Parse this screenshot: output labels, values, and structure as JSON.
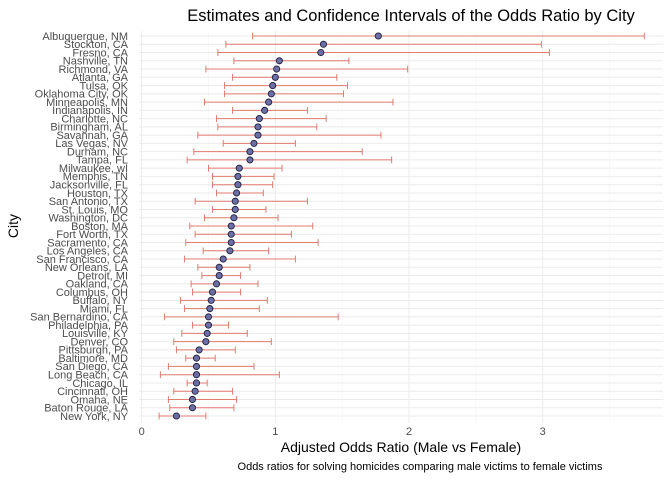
{
  "chart_data": {
    "type": "scatter",
    "subtype": "point-range",
    "title": "Estimates and Confidence Intervals of the Odds Ratio by City",
    "xlabel": "Adjusted Odds Ratio (Male vs Female)",
    "ylabel": "City",
    "caption": "Odds ratios for solving homicides comparing male victims to female victims",
    "xlim": [
      -0.02,
      3.9
    ],
    "xticks": [
      0,
      1,
      2,
      3
    ],
    "grid": true,
    "legend": "none",
    "colors": {
      "point": "#6b6fa5",
      "point_edge": "#1f1f3d",
      "errorbar": "#e07b6e",
      "grid_major": "#ebebeb",
      "grid_minor": "#f5f5f5"
    },
    "categories": [
      "Albuquerque, NM",
      "Stockton, CA",
      "Fresno, CA",
      "Nashville, TN",
      "Richmond, VA",
      "Atlanta, GA",
      "Tulsa, OK",
      "Oklahoma City, OK",
      "Minneapolis, MN",
      "Indianapolis, IN",
      "Charlotte, NC",
      "Birmingham, AL",
      "Savannah, GA",
      "Las Vegas, NV",
      "Durham, NC",
      "Tampa, FL",
      "Milwaukee, wI",
      "Memphis, TN",
      "Jacksonville, FL",
      "Houston, TX",
      "San Antonio, TX",
      "St. Louis, MO",
      "Washington, DC",
      "Boston, MA",
      "Fort Worth, TX",
      "Sacramento, CA",
      "Los Angeles, CA",
      "San Francisco, CA",
      "New Orleans, LA",
      "Detroit, MI",
      "Oakland, CA",
      "Columbus, OH",
      "Buffalo, NY",
      "Miami, FL",
      "San Bernardino, CA",
      "Philadelphia, PA",
      "Louisville, KY",
      "Denver, CO",
      "Pittsburgh, PA",
      "Baltimore, MD",
      "San Diego, CA",
      "Long Beach, CA",
      "Chicago, IL",
      "Cincinnati, OH",
      "Omaha, NE",
      "Baton Rouge, LA",
      "New York, NY"
    ],
    "estimates": [
      1.77,
      1.36,
      1.34,
      1.03,
      1.01,
      1.0,
      0.98,
      0.97,
      0.95,
      0.92,
      0.88,
      0.87,
      0.87,
      0.84,
      0.81,
      0.81,
      0.73,
      0.72,
      0.72,
      0.71,
      0.7,
      0.7,
      0.69,
      0.67,
      0.67,
      0.67,
      0.66,
      0.61,
      0.58,
      0.58,
      0.56,
      0.53,
      0.52,
      0.51,
      0.5,
      0.5,
      0.49,
      0.48,
      0.43,
      0.41,
      0.41,
      0.41,
      0.41,
      0.4,
      0.38,
      0.38,
      0.26
    ],
    "lower": [
      0.83,
      0.63,
      0.57,
      0.69,
      0.48,
      0.68,
      0.62,
      0.62,
      0.47,
      0.68,
      0.56,
      0.57,
      0.42,
      0.61,
      0.39,
      0.34,
      0.5,
      0.53,
      0.53,
      0.56,
      0.4,
      0.53,
      0.47,
      0.36,
      0.4,
      0.33,
      0.46,
      0.32,
      0.42,
      0.45,
      0.37,
      0.38,
      0.29,
      0.32,
      0.17,
      0.38,
      0.3,
      0.24,
      0.26,
      0.33,
      0.2,
      0.14,
      0.34,
      0.24,
      0.2,
      0.21,
      0.13
    ],
    "upper": [
      3.76,
      2.99,
      3.05,
      1.55,
      1.99,
      1.46,
      1.54,
      1.51,
      1.88,
      1.24,
      1.38,
      1.31,
      1.79,
      1.15,
      1.65,
      1.87,
      1.05,
      0.99,
      0.98,
      0.91,
      1.24,
      0.93,
      1.02,
      1.28,
      1.12,
      1.32,
      0.95,
      1.15,
      0.81,
      0.74,
      0.87,
      0.74,
      0.94,
      0.88,
      1.47,
      0.65,
      0.79,
      0.97,
      0.7,
      0.55,
      0.84,
      1.03,
      0.49,
      0.68,
      0.71,
      0.69,
      0.48
    ]
  }
}
